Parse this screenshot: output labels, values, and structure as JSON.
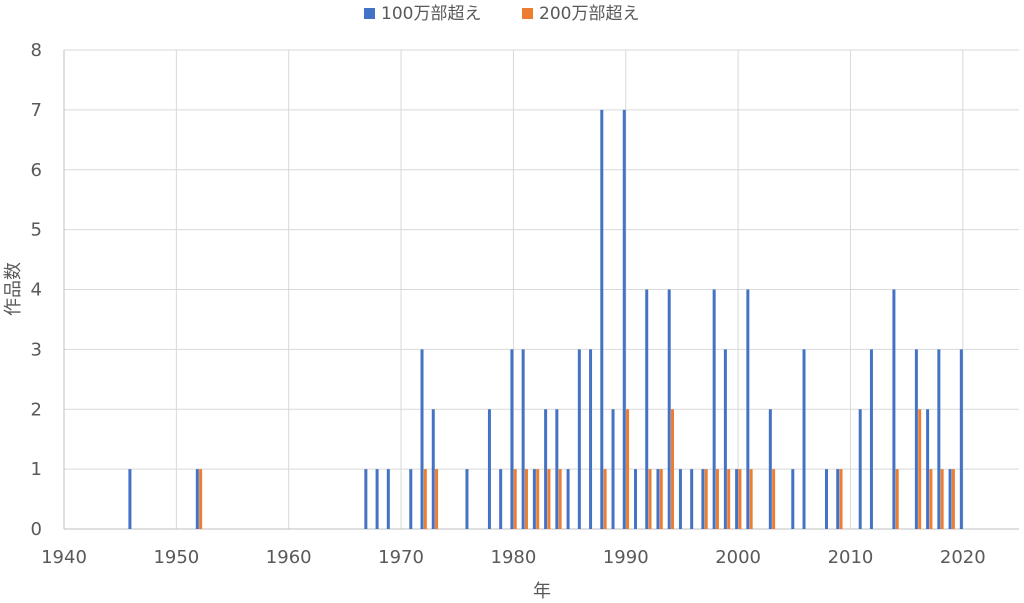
{
  "chart_data": {
    "type": "bar",
    "xlabel": "年",
    "ylabel": "作品数",
    "xlim": [
      1940,
      2025
    ],
    "ylim": [
      0,
      8
    ],
    "x_ticks": [
      1940,
      1950,
      1960,
      1970,
      1980,
      1990,
      2000,
      2010,
      2020
    ],
    "y_ticks": [
      0,
      1,
      2,
      3,
      4,
      5,
      6,
      7,
      8
    ],
    "grid": true,
    "legend_position": "top-center",
    "series": [
      {
        "name": "100万部超え",
        "color": "#4472c4",
        "points": [
          [
            1946,
            1
          ],
          [
            1952,
            1
          ],
          [
            1967,
            1
          ],
          [
            1968,
            1
          ],
          [
            1969,
            1
          ],
          [
            1971,
            1
          ],
          [
            1972,
            3
          ],
          [
            1973,
            2
          ],
          [
            1976,
            1
          ],
          [
            1978,
            2
          ],
          [
            1979,
            1
          ],
          [
            1980,
            3
          ],
          [
            1981,
            3
          ],
          [
            1982,
            1
          ],
          [
            1983,
            2
          ],
          [
            1984,
            2
          ],
          [
            1985,
            1
          ],
          [
            1986,
            3
          ],
          [
            1987,
            3
          ],
          [
            1988,
            7
          ],
          [
            1989,
            2
          ],
          [
            1990,
            7
          ],
          [
            1991,
            1
          ],
          [
            1992,
            4
          ],
          [
            1993,
            1
          ],
          [
            1994,
            4
          ],
          [
            1995,
            1
          ],
          [
            1996,
            1
          ],
          [
            1997,
            1
          ],
          [
            1998,
            4
          ],
          [
            1999,
            3
          ],
          [
            2000,
            1
          ],
          [
            2001,
            4
          ],
          [
            2003,
            2
          ],
          [
            2005,
            1
          ],
          [
            2006,
            3
          ],
          [
            2008,
            1
          ],
          [
            2009,
            1
          ],
          [
            2011,
            2
          ],
          [
            2012,
            3
          ],
          [
            2014,
            4
          ],
          [
            2016,
            3
          ],
          [
            2017,
            2
          ],
          [
            2018,
            3
          ],
          [
            2019,
            1
          ],
          [
            2020,
            3
          ]
        ]
      },
      {
        "name": "200万部超え",
        "color": "#ed7d31",
        "points": [
          [
            1952,
            1
          ],
          [
            1972,
            1
          ],
          [
            1973,
            1
          ],
          [
            1980,
            1
          ],
          [
            1981,
            1
          ],
          [
            1982,
            1
          ],
          [
            1983,
            1
          ],
          [
            1984,
            1
          ],
          [
            1988,
            1
          ],
          [
            1990,
            2
          ],
          [
            1992,
            1
          ],
          [
            1993,
            1
          ],
          [
            1994,
            2
          ],
          [
            1997,
            1
          ],
          [
            1998,
            1
          ],
          [
            1999,
            1
          ],
          [
            2000,
            1
          ],
          [
            2001,
            1
          ],
          [
            2003,
            1
          ],
          [
            2009,
            1
          ],
          [
            2014,
            1
          ],
          [
            2016,
            2
          ],
          [
            2017,
            1
          ],
          [
            2018,
            1
          ],
          [
            2019,
            1
          ]
        ]
      }
    ]
  }
}
